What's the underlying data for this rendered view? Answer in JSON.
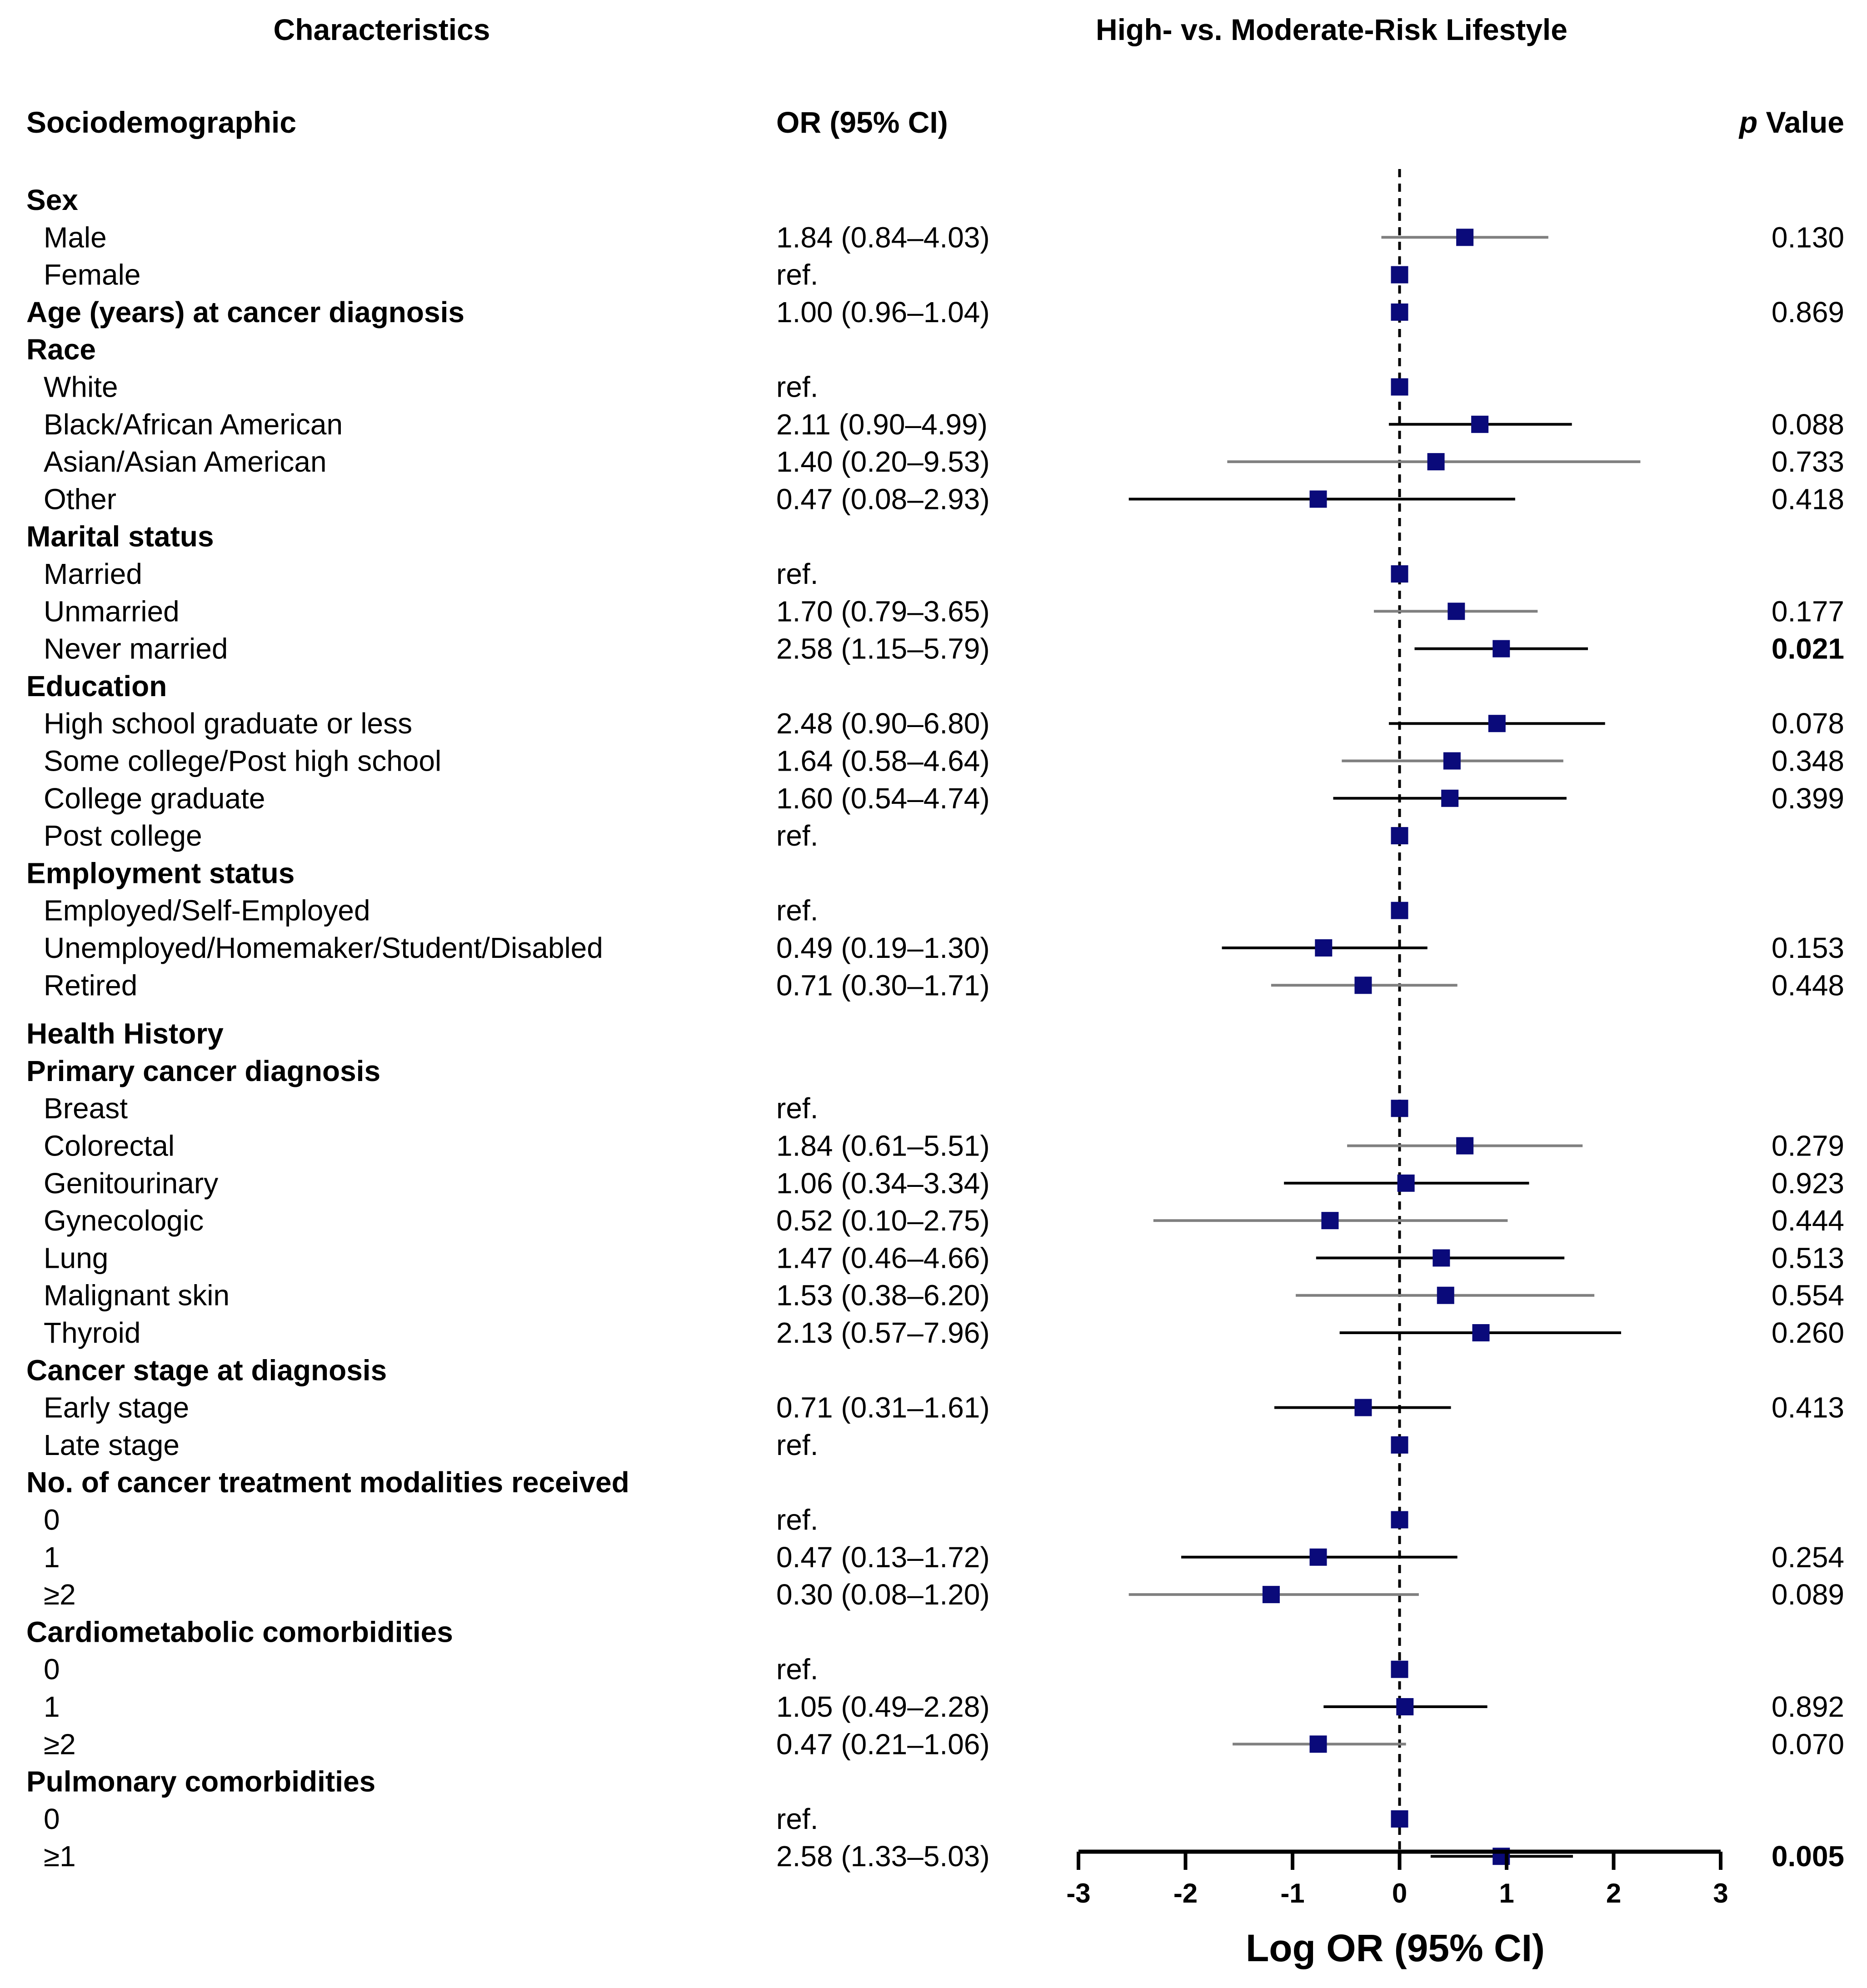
{
  "chart_data": {
    "type": "forest",
    "title": "High- vs. Moderate-Risk Lifestyle",
    "left_header": "Characteristics",
    "section_header": "Sociodemographic",
    "or_header": "OR (95% CI)",
    "p_header_italic": "p",
    "p_header_rest": " Value",
    "xlabel": "Log OR (95% CI)",
    "xlim": [
      -3,
      3
    ],
    "ticks": [
      -3,
      -2,
      -1,
      0,
      1,
      2,
      3
    ],
    "tick_labels": [
      "-3",
      "-2",
      "-1",
      "0",
      "1",
      "2",
      "3"
    ],
    "rows": [
      {
        "label": "Sex",
        "bold": true
      },
      {
        "label": "Male",
        "or": "1.84 (0.84–4.03)",
        "p": "0.130",
        "est": 0.61,
        "lo": -0.17,
        "hi": 1.39
      },
      {
        "label": "Female",
        "or": "ref.",
        "est": 0
      },
      {
        "label": "Age (years) at cancer diagnosis",
        "bold": true,
        "or": "1.00 (0.96–1.04)",
        "p": "0.869",
        "est": 0,
        "lo": -0.04,
        "hi": 0.04
      },
      {
        "label": "Race",
        "bold": true
      },
      {
        "label": "White",
        "or": "ref.",
        "est": 0
      },
      {
        "label": "Black/African American",
        "or": "2.11 (0.90–4.99)",
        "p": "0.088",
        "est": 0.75,
        "lo": -0.1,
        "hi": 1.61
      },
      {
        "label": "Asian/Asian American",
        "or": "1.40 (0.20–9.53)",
        "p": "0.733",
        "est": 0.34,
        "lo": -1.61,
        "hi": 2.25
      },
      {
        "label": "Other",
        "or": "0.47 (0.08–2.93)",
        "p": "0.418",
        "est": -0.76,
        "lo": -2.53,
        "hi": 1.08
      },
      {
        "label": "Marital status",
        "bold": true
      },
      {
        "label": "Married",
        "or": "ref.",
        "est": 0
      },
      {
        "label": "Unmarried",
        "or": "1.70 (0.79–3.65)",
        "p": "0.177",
        "est": 0.53,
        "lo": -0.24,
        "hi": 1.29
      },
      {
        "label": "Never married",
        "or": "2.58 (1.15–5.79)",
        "p": "0.021",
        "p_bold": true,
        "est": 0.95,
        "lo": 0.14,
        "hi": 1.76
      },
      {
        "label": "Education",
        "bold": true
      },
      {
        "label": "High school graduate or less",
        "or": "2.48 (0.90–6.80)",
        "p": "0.078",
        "est": 0.91,
        "lo": -0.1,
        "hi": 1.92
      },
      {
        "label": "Some college/Post high school",
        "or": "1.64 (0.58–4.64)",
        "p": "0.348",
        "est": 0.49,
        "lo": -0.54,
        "hi": 1.53
      },
      {
        "label": "College graduate",
        "or": "1.60 (0.54–4.74)",
        "p": "0.399",
        "est": 0.47,
        "lo": -0.62,
        "hi": 1.56
      },
      {
        "label": "Post college",
        "or": "ref.",
        "est": 0
      },
      {
        "label": "Employment status",
        "bold": true
      },
      {
        "label": "Employed/Self-Employed",
        "or": "ref.",
        "est": 0
      },
      {
        "label": "Unemployed/Homemaker/Student/Disabled",
        "or": "0.49 (0.19–1.30)",
        "p": "0.153",
        "est": -0.71,
        "lo": -1.66,
        "hi": 0.26
      },
      {
        "label": "Retired",
        "or": "0.71 (0.30–1.71)",
        "p": "0.448",
        "est": -0.34,
        "lo": -1.2,
        "hi": 0.54
      },
      {
        "label": "Health History",
        "bold": true,
        "gap": true
      },
      {
        "label": "Primary cancer diagnosis",
        "bold": true
      },
      {
        "label": "Breast",
        "or": "ref.",
        "est": 0
      },
      {
        "label": "Colorectal",
        "or": "1.84 (0.61–5.51)",
        "p": "0.279",
        "est": 0.61,
        "lo": -0.49,
        "hi": 1.71
      },
      {
        "label": "Genitourinary",
        "or": "1.06 (0.34–3.34)",
        "p": "0.923",
        "est": 0.06,
        "lo": -1.08,
        "hi": 1.21
      },
      {
        "label": "Gynecologic",
        "or": "0.52 (0.10–2.75)",
        "p": "0.444",
        "est": -0.65,
        "lo": -2.3,
        "hi": 1.01
      },
      {
        "label": "Lung",
        "or": "1.47 (0.46–4.66)",
        "p": "0.513",
        "est": 0.39,
        "lo": -0.78,
        "hi": 1.54
      },
      {
        "label": "Malignant skin",
        "or": "1.53 (0.38–6.20)",
        "p": "0.554",
        "est": 0.43,
        "lo": -0.97,
        "hi": 1.82
      },
      {
        "label": "Thyroid",
        "or": "2.13 (0.57–7.96)",
        "p": "0.260",
        "est": 0.76,
        "lo": -0.56,
        "hi": 2.07
      },
      {
        "label": "Cancer stage at diagnosis",
        "bold": true
      },
      {
        "label": "Early stage",
        "or": "0.71 (0.31–1.61)",
        "p": "0.413",
        "est": -0.34,
        "lo": -1.17,
        "hi": 0.48
      },
      {
        "label": "Late stage",
        "or": "ref.",
        "est": 0
      },
      {
        "label": "No. of cancer treatment modalities received",
        "bold": true
      },
      {
        "label": "0",
        "or": "ref.",
        "est": 0
      },
      {
        "label": "1",
        "or": "0.47 (0.13–1.72)",
        "p": "0.254",
        "est": -0.76,
        "lo": -2.04,
        "hi": 0.54
      },
      {
        "label": "≥2",
        "or": "0.30 (0.08–1.20)",
        "p": "0.089",
        "est": -1.2,
        "lo": -2.53,
        "hi": 0.18
      },
      {
        "label": "Cardiometabolic comorbidities",
        "bold": true
      },
      {
        "label": "0",
        "or": "ref.",
        "est": 0
      },
      {
        "label": "1",
        "or": "1.05 (0.49–2.28)",
        "p": "0.892",
        "est": 0.05,
        "lo": -0.71,
        "hi": 0.82
      },
      {
        "label": "≥2",
        "or": "0.47 (0.21–1.06)",
        "p": "0.070",
        "est": -0.76,
        "lo": -1.56,
        "hi": 0.06
      },
      {
        "label": "Pulmonary comorbidities",
        "bold": true
      },
      {
        "label": "0",
        "or": "ref.",
        "est": 0
      },
      {
        "label": "≥1",
        "or": "2.58 (1.33–5.03)",
        "p": "0.005",
        "p_bold": true,
        "est": 0.95,
        "lo": 0.29,
        "hi": 1.62
      }
    ],
    "colors": {
      "marker": "#0a0a7a",
      "ci_gray": "#808080",
      "ci_black": "#000000",
      "text": "#000000"
    }
  }
}
